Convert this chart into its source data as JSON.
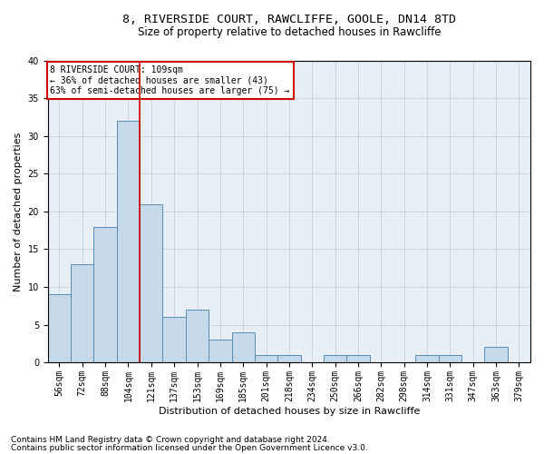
{
  "title_line1": "8, RIVERSIDE COURT, RAWCLIFFE, GOOLE, DN14 8TD",
  "title_line2": "Size of property relative to detached houses in Rawcliffe",
  "xlabel": "Distribution of detached houses by size in Rawcliffe",
  "ylabel": "Number of detached properties",
  "footnote1": "Contains HM Land Registry data © Crown copyright and database right 2024.",
  "footnote2": "Contains public sector information licensed under the Open Government Licence v3.0.",
  "annotation_line1": "8 RIVERSIDE COURT: 109sqm",
  "annotation_line2": "← 36% of detached houses are smaller (43)",
  "annotation_line3": "63% of semi-detached houses are larger (75) →",
  "bar_labels": [
    "56sqm",
    "72sqm",
    "88sqm",
    "104sqm",
    "121sqm",
    "137sqm",
    "153sqm",
    "169sqm",
    "185sqm",
    "201sqm",
    "218sqm",
    "234sqm",
    "250sqm",
    "266sqm",
    "282sqm",
    "298sqm",
    "314sqm",
    "331sqm",
    "347sqm",
    "363sqm",
    "379sqm"
  ],
  "bar_vals_full": [
    9,
    13,
    18,
    32,
    21,
    6,
    7,
    3,
    4,
    1,
    1,
    0,
    1,
    1,
    0,
    0,
    1,
    1,
    0,
    2,
    0
  ],
  "bar_color": "#c6d9e8",
  "bar_edge_color": "#5a8db5",
  "vline_x": 3.5,
  "vline_color": "#cc0000",
  "ylim": [
    0,
    40
  ],
  "yticks": [
    0,
    5,
    10,
    15,
    20,
    25,
    30,
    35,
    40
  ],
  "grid_color": "#c8d0dc",
  "bg_color": "#e8eef5",
  "annotation_box_color": "#cc0000",
  "title_fontsize": 9.5,
  "subtitle_fontsize": 8.5,
  "axis_label_fontsize": 8,
  "tick_fontsize": 7,
  "footnote_fontsize": 6.5
}
